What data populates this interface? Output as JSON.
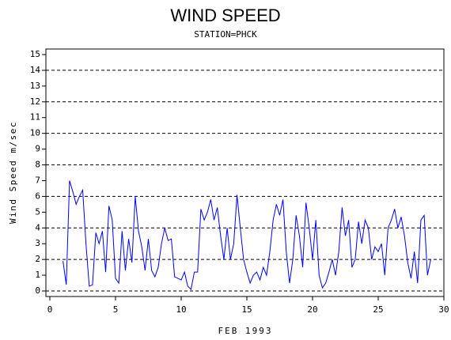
{
  "chart_data": {
    "type": "line",
    "title": "WIND SPEED",
    "subtitle": "STATION=PHCK",
    "x_label": "FEB 1993",
    "y_label": "Wind Speed m/sec",
    "x": [
      1,
      1.25,
      1.5,
      1.75,
      2,
      2.25,
      2.5,
      2.75,
      3,
      3.25,
      3.5,
      3.75,
      4,
      4.25,
      4.5,
      4.75,
      5,
      5.25,
      5.5,
      5.75,
      6,
      6.25,
      6.5,
      6.75,
      7,
      7.25,
      7.5,
      7.75,
      8,
      8.25,
      8.5,
      8.75,
      9,
      9.25,
      9.5,
      9.75,
      10,
      10.25,
      10.5,
      10.75,
      11,
      11.25,
      11.5,
      11.75,
      12,
      12.25,
      12.5,
      12.75,
      13,
      13.25,
      13.5,
      13.75,
      14,
      14.25,
      14.5,
      14.75,
      15,
      15.25,
      15.5,
      15.75,
      16,
      16.25,
      16.5,
      16.75,
      17,
      17.25,
      17.5,
      17.75,
      18,
      18.25,
      18.5,
      18.75,
      19,
      19.25,
      19.5,
      19.75,
      20,
      20.25,
      20.5,
      20.75,
      21,
      21.25,
      21.5,
      21.75,
      22,
      22.25,
      22.5,
      22.75,
      23,
      23.25,
      23.5,
      23.75,
      24,
      24.25,
      24.5,
      24.75,
      25,
      25.25,
      25.5,
      25.75,
      26,
      26.25,
      26.5,
      26.75,
      27,
      27.25,
      27.5,
      27.75,
      28,
      28.25,
      28.5,
      28.75,
      29
    ],
    "series": [
      {
        "color": "#0000ff",
        "values": [
          1.9,
          0.4,
          7.0,
          6.3,
          5.5,
          6.0,
          6.4,
          3.0,
          0.3,
          0.4,
          3.7,
          3.0,
          3.8,
          1.2,
          5.4,
          4.5,
          0.8,
          0.5,
          3.8,
          1.3,
          3.3,
          1.8,
          6.0,
          3.8,
          2.8,
          1.3,
          3.3,
          1.3,
          0.9,
          1.5,
          3.0,
          4.0,
          3.2,
          3.3,
          0.9,
          0.8,
          0.7,
          1.2,
          0.3,
          0.1,
          1.2,
          1.2,
          5.2,
          4.5,
          5.0,
          5.8,
          4.5,
          5.3,
          3.5,
          2.0,
          4.0,
          2.0,
          3.0,
          6.1,
          4.0,
          2.0,
          1.2,
          0.5,
          1.0,
          1.2,
          0.7,
          1.5,
          1.0,
          2.5,
          4.5,
          5.5,
          4.8,
          5.8,
          2.5,
          0.5,
          2.0,
          4.8,
          3.5,
          1.5,
          5.6,
          4.0,
          2.0,
          4.5,
          1.0,
          0.2,
          0.5,
          1.2,
          2.0,
          1.0,
          2.5,
          5.3,
          3.5,
          4.5,
          1.5,
          2.0,
          4.4,
          3.0,
          4.5,
          4.0,
          2.0,
          2.8,
          2.5,
          3.0,
          1.0,
          4.0,
          4.5,
          5.2,
          4.0,
          4.7,
          3.5,
          1.8,
          0.8,
          2.5,
          0.5,
          4.5,
          4.8,
          1.0,
          2.0
        ]
      }
    ],
    "xlim": [
      0,
      30
    ],
    "xticks": [
      0,
      5,
      10,
      15,
      20,
      25,
      30
    ],
    "ylim": [
      0,
      15
    ],
    "yticks": [
      0,
      1,
      2,
      3,
      4,
      5,
      6,
      7,
      8,
      9,
      10,
      11,
      12,
      13,
      14,
      15
    ],
    "grid_lines": [
      0,
      2,
      4,
      6,
      8,
      10,
      12,
      14
    ]
  }
}
